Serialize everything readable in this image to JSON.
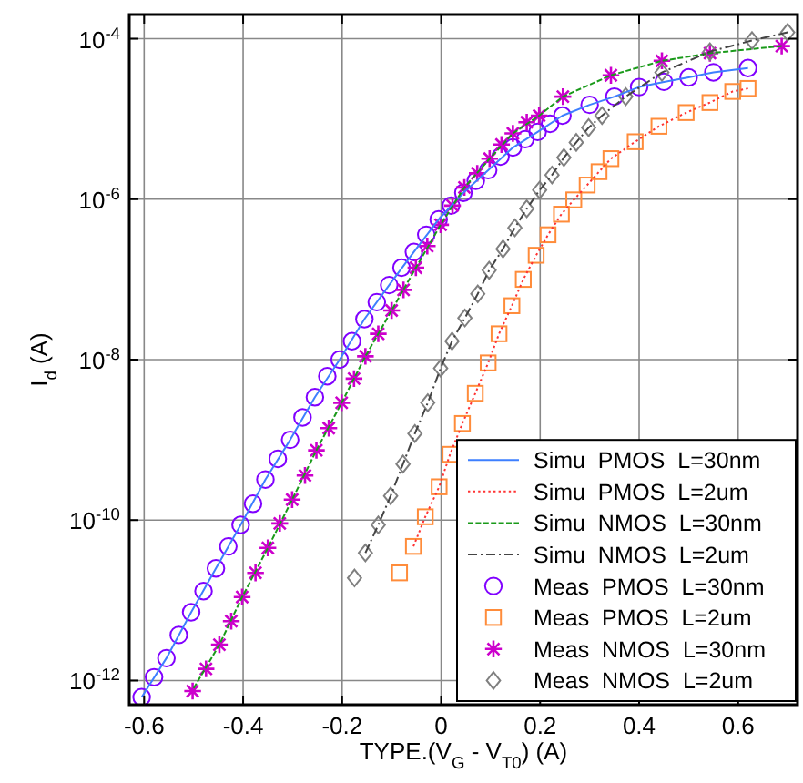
{
  "chart_data": {
    "type": "line",
    "xlabel": "TYPE.(V$_{G}$ - V$_{T0}$) (A)",
    "ylabel": "I$_{d}$ (A)",
    "log": "y",
    "grid": true,
    "legend": "bottom right",
    "xlim": [
      -0.63,
      0.72
    ],
    "ylim": [
      5e-13,
      0.0002
    ],
    "xticks": [
      -0.6,
      -0.4,
      -0.2,
      0,
      0.2,
      0.4,
      0.6
    ],
    "yticks": [
      {
        "value": 1e-12,
        "label": "10$^{-12}$"
      },
      {
        "value": 1e-10,
        "label": "10$^{-10}$"
      },
      {
        "value": 1e-08,
        "label": "10$^{-8}$"
      },
      {
        "value": 1e-06,
        "label": "10$^{-6}$"
      },
      {
        "value": 0.0001,
        "label": "10$^{-4}$"
      }
    ],
    "series": [
      {
        "name": "Simu  PMOS  L=30nm",
        "color": "#3d7fff",
        "line_style": "solid",
        "marker": "none",
        "x": [
          -0.605,
          -0.555,
          -0.505,
          -0.455,
          -0.405,
          -0.355,
          -0.305,
          -0.255,
          -0.205,
          -0.155,
          -0.105,
          -0.055,
          -0.005,
          0.045,
          0.095,
          0.145,
          0.195,
          0.245,
          0.3,
          0.35,
          0.4,
          0.45,
          0.5,
          0.55,
          0.62
        ],
        "values": [
          6.2e-13,
          1.9e-12,
          7.1e-12,
          2.5e-11,
          8.7e-11,
          3.2e-10,
          1e-09,
          3.4e-09,
          1e-08,
          3.2e-08,
          8.5e-08,
          2.2e-07,
          5.6e-07,
          1.2e-06,
          2.3e-06,
          4.4e-06,
          6.9e-06,
          1.1e-05,
          1.5e-05,
          1.9e-05,
          2.5e-05,
          2.9e-05,
          3.3e-05,
          3.8e-05,
          4.3e-05
        ]
      },
      {
        "name": "Simu  PMOS  L=2um",
        "color": "#ff3333",
        "line_style": "dotted",
        "marker": "none",
        "x": [
          -0.056,
          -0.032,
          -0.004,
          0.018,
          0.043,
          0.069,
          0.095,
          0.117,
          0.143,
          0.166,
          0.192,
          0.216,
          0.243,
          0.268,
          0.295,
          0.319,
          0.343,
          0.392,
          0.44,
          0.495,
          0.543,
          0.589,
          0.62
        ],
        "values": [
          4.7e-11,
          1.1e-10,
          2.6e-10,
          6.6e-10,
          1.6e-09,
          3.8e-09,
          9.1e-09,
          2.1e-08,
          4.7e-08,
          1e-07,
          2e-07,
          3.6e-07,
          6.5e-07,
          9.8e-07,
          1.5e-06,
          2.2e-06,
          3.2e-06,
          5.2e-06,
          8.1e-06,
          1.2e-05,
          1.6e-05,
          2.2e-05,
          2.4e-05
        ]
      },
      {
        "name": "Simu  NMOS  L=30nm",
        "color": "#1a9a1a",
        "line_style": "dashed",
        "marker": "none",
        "x": [
          -0.5,
          -0.448,
          -0.402,
          -0.35,
          -0.301,
          -0.252,
          -0.201,
          -0.153,
          -0.1,
          -0.051,
          -0.001,
          0.047,
          0.098,
          0.145,
          0.198,
          0.246,
          0.343,
          0.446,
          0.543,
          0.688
        ],
        "values": [
          8e-13,
          2.8e-12,
          1.1e-11,
          4.5e-11,
          1.8e-10,
          7.4e-10,
          2.9e-09,
          1.1e-08,
          4.1e-08,
          1.4e-07,
          4.8e-07,
          1.4e-06,
          3.2e-06,
          6.6e-06,
          1.1e-05,
          1.9e-05,
          3.5e-05,
          5.3e-05,
          6.6e-05,
          8.1e-05
        ]
      },
      {
        "name": "Simu  NMOS  L=2um",
        "color": "#444444",
        "line_style": "dashdot",
        "marker": "none",
        "x": [
          -0.153,
          -0.127,
          -0.102,
          -0.077,
          -0.053,
          -0.027,
          -0.001,
          0.022,
          0.048,
          0.074,
          0.097,
          0.125,
          0.149,
          0.173,
          0.199,
          0.224,
          0.248,
          0.273,
          0.298,
          0.325,
          0.373,
          0.446,
          0.543,
          0.628,
          0.7
        ],
        "values": [
          3.9e-11,
          8.7e-11,
          2e-10,
          5e-10,
          1.2e-09,
          2.9e-09,
          7.8e-09,
          1.7e-08,
          3.3e-08,
          6.6e-08,
          1.3e-07,
          2.4e-07,
          4.4e-07,
          7.6e-07,
          1.3e-06,
          2e-06,
          3.3e-06,
          5.1e-06,
          7.8e-06,
          1.1e-05,
          1.9e-05,
          3.8e-05,
          6.9e-05,
          9.5e-05,
          0.00012
        ]
      },
      {
        "name": "Meas  PMOS  L=30nm",
        "type": "scatter",
        "color": "#8000ff",
        "marker": "circle",
        "x": [
          -0.605,
          -0.58,
          -0.555,
          -0.53,
          -0.505,
          -0.48,
          -0.455,
          -0.43,
          -0.405,
          -0.38,
          -0.355,
          -0.33,
          -0.305,
          -0.28,
          -0.255,
          -0.23,
          -0.205,
          -0.18,
          -0.155,
          -0.13,
          -0.105,
          -0.08,
          -0.055,
          -0.03,
          -0.005,
          0.02,
          0.045,
          0.07,
          0.095,
          0.12,
          0.145,
          0.17,
          0.195,
          0.22,
          0.245,
          0.3,
          0.35,
          0.4,
          0.45,
          0.5,
          0.55,
          0.62
        ],
        "values": [
          6.2e-13,
          1.1e-12,
          1.9e-12,
          3.7e-12,
          7.1e-12,
          1.3e-11,
          2.5e-11,
          4.7e-11,
          8.7e-11,
          1.6e-10,
          3.2e-10,
          5.8e-10,
          1e-09,
          1.9e-09,
          3.4e-09,
          6.2e-09,
          1e-08,
          1.7e-08,
          3.2e-08,
          5.2e-08,
          8.5e-08,
          1.4e-07,
          2.2e-07,
          3.6e-07,
          5.6e-07,
          8.3e-07,
          1.2e-06,
          1.7e-06,
          2.3e-06,
          3.4e-06,
          4.4e-06,
          5.6e-06,
          6.9e-06,
          8.7e-06,
          1.1e-05,
          1.5e-05,
          1.9e-05,
          2.5e-05,
          2.9e-05,
          3.3e-05,
          3.8e-05,
          4.3e-05
        ]
      },
      {
        "name": "Meas  PMOS  L=2um",
        "type": "scatter",
        "color": "#ff8c3a",
        "marker": "square",
        "x": [
          -0.084,
          -0.056,
          -0.032,
          -0.004,
          0.018,
          0.043,
          0.069,
          0.095,
          0.117,
          0.143,
          0.166,
          0.192,
          0.216,
          0.243,
          0.268,
          0.295,
          0.319,
          0.343,
          0.392,
          0.44,
          0.495,
          0.543,
          0.589,
          0.62
        ],
        "values": [
          2.2e-11,
          4.7e-11,
          1.1e-10,
          2.6e-10,
          6.6e-10,
          1.6e-09,
          3.8e-09,
          9.1e-09,
          2.1e-08,
          4.7e-08,
          1e-07,
          2e-07,
          3.6e-07,
          6.5e-07,
          9.8e-07,
          1.5e-06,
          2.2e-06,
          3.2e-06,
          5.2e-06,
          8.1e-06,
          1.2e-05,
          1.6e-05,
          2.2e-05,
          2.4e-05
        ]
      },
      {
        "name": "Meas  NMOS  L=30nm",
        "type": "scatter",
        "color": "#cc00cc",
        "marker": "cross",
        "x": [
          -0.502,
          -0.475,
          -0.448,
          -0.424,
          -0.402,
          -0.375,
          -0.35,
          -0.326,
          -0.301,
          -0.275,
          -0.252,
          -0.227,
          -0.201,
          -0.176,
          -0.153,
          -0.127,
          -0.1,
          -0.076,
          -0.051,
          -0.028,
          -0.001,
          0.023,
          0.047,
          0.073,
          0.098,
          0.122,
          0.145,
          0.173,
          0.198,
          0.246,
          0.343,
          0.446,
          0.543,
          0.688
        ],
        "values": [
          7.4e-13,
          1.4e-12,
          2.8e-12,
          5.5e-12,
          1.1e-11,
          2.2e-11,
          4.5e-11,
          9.1e-11,
          1.8e-10,
          3.6e-10,
          7.4e-10,
          1.4e-09,
          2.9e-09,
          5.8e-09,
          1.1e-08,
          2.1e-08,
          4.1e-08,
          7.4e-08,
          1.4e-07,
          2.6e-07,
          4.8e-07,
          8.3e-07,
          1.4e-06,
          2.1e-06,
          3.2e-06,
          4.8e-06,
          6.6e-06,
          9.1e-06,
          1.1e-05,
          1.9e-05,
          3.5e-05,
          5.3e-05,
          6.6e-05,
          8.1e-05
        ]
      },
      {
        "name": "Meas  NMOS  L=2um",
        "type": "scatter",
        "color": "#808080",
        "marker": "diamond",
        "x": [
          -0.175,
          -0.153,
          -0.127,
          -0.102,
          -0.077,
          -0.053,
          -0.027,
          -0.001,
          0.022,
          0.048,
          0.074,
          0.097,
          0.125,
          0.149,
          0.173,
          0.199,
          0.224,
          0.248,
          0.273,
          0.298,
          0.325,
          0.373,
          0.446,
          0.543,
          0.628,
          0.7
        ],
        "values": [
          1.9e-11,
          3.9e-11,
          8.7e-11,
          2e-10,
          5e-10,
          1.2e-09,
          2.9e-09,
          7.8e-09,
          1.7e-08,
          3.3e-08,
          6.6e-08,
          1.3e-07,
          2.4e-07,
          4.4e-07,
          7.6e-07,
          1.3e-06,
          2e-06,
          3.3e-06,
          5.1e-06,
          7.8e-06,
          1.1e-05,
          1.9e-05,
          3.8e-05,
          6.9e-05,
          9.5e-05,
          0.00012
        ]
      }
    ]
  }
}
